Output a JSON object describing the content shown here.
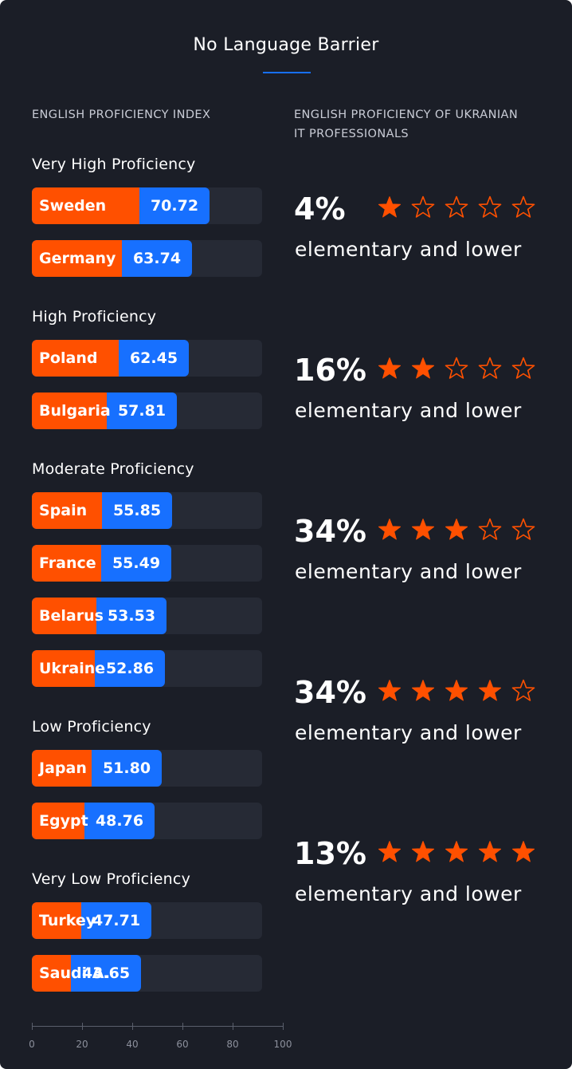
{
  "title": "No Language Barrier",
  "left_heading": "ENGLISH PROFICIENCY INDEX",
  "right_heading_line1": "ENGLISH PROFICIENCY OF UKRANIAN",
  "right_heading_line2": "IT PROFESSIONALS",
  "colors": {
    "background": "#1b1e27",
    "orange": "#ff5000",
    "blue": "#1770ff",
    "track": "#262a35"
  },
  "chart_data": [
    {
      "type": "bar",
      "orientation": "horizontal",
      "title": "ENGLISH PROFICIENCY INDEX",
      "xlim": [
        0,
        100
      ],
      "x_ticks": [
        "0",
        "20",
        "40",
        "60",
        "80",
        "100"
      ],
      "groups": [
        {
          "label": "Very High Proficiency",
          "bars": [
            {
              "country": "Sweden",
              "value": 70.72,
              "value_label": "70.72"
            },
            {
              "country": "Germany",
              "value": 63.74,
              "value_label": "63.74"
            }
          ]
        },
        {
          "label": "High Proficiency",
          "bars": [
            {
              "country": "Poland",
              "value": 62.45,
              "value_label": "62.45"
            },
            {
              "country": "Bulgaria",
              "value": 57.81,
              "value_label": "57.81"
            }
          ]
        },
        {
          "label": "Moderate Proficiency",
          "bars": [
            {
              "country": "Spain",
              "value": 55.85,
              "value_label": "55.85"
            },
            {
              "country": "France",
              "value": 55.49,
              "value_label": "55.49"
            },
            {
              "country": "Belarus",
              "value": 53.53,
              "value_label": "53.53"
            },
            {
              "country": "Ukraine",
              "value": 52.86,
              "value_label": "52.86"
            }
          ]
        },
        {
          "label": "Low Proficiency",
          "bars": [
            {
              "country": "Japan",
              "value": 51.8,
              "value_label": "51.80"
            },
            {
              "country": "Egypt",
              "value": 48.76,
              "value_label": "48.76"
            }
          ]
        },
        {
          "label": "Very Low Proficiency",
          "bars": [
            {
              "country": "Turkey",
              "value": 47.71,
              "value_label": "47.71"
            },
            {
              "country": "Saudi A.",
              "value": 43.65,
              "value_label": "43.65"
            }
          ]
        }
      ]
    },
    {
      "type": "table",
      "title": "ENGLISH PROFICIENCY OF UKRANIAN IT PROFESSIONALS",
      "rows": [
        {
          "percent": "4%",
          "stars": 1,
          "caption": "elementary and lower"
        },
        {
          "percent": "16%",
          "stars": 2,
          "caption": "elementary and lower"
        },
        {
          "percent": "34%",
          "stars": 3,
          "caption": "elementary and lower"
        },
        {
          "percent": "34%",
          "stars": 4,
          "caption": "elementary and lower"
        },
        {
          "percent": "13%",
          "stars": 5,
          "caption": "elementary and lower"
        }
      ]
    }
  ]
}
